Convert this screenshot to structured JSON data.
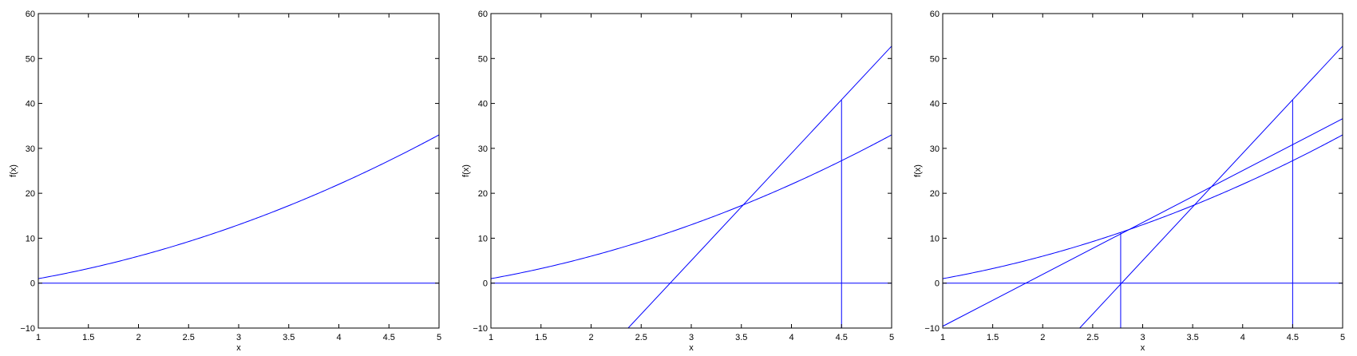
{
  "chart_data": [
    {
      "type": "line",
      "xlabel": "x",
      "ylabel": "f(x)",
      "xlim": [
        1,
        5
      ],
      "ylim": [
        -10,
        60
      ],
      "xticks": [
        1,
        1.5,
        2,
        2.5,
        3,
        3.5,
        4,
        4.5,
        5
      ],
      "xtick_labels": [
        "1",
        "1.5",
        "2",
        "2.5",
        "3",
        "3.5",
        "4",
        "4.5",
        "5"
      ],
      "yticks": [
        -10,
        0,
        10,
        20,
        30,
        40,
        50,
        60
      ],
      "ytick_labels": [
        "−10",
        "0",
        "10",
        "20",
        "30",
        "40",
        "50",
        "60"
      ],
      "grid": false,
      "line_color": "#0000ff",
      "series": [
        {
          "kind": "function",
          "expr": "x^2 + 2x - 2",
          "x_range": [
            1,
            5
          ]
        },
        {
          "kind": "segment",
          "points": [
            [
              1,
              0
            ],
            [
              5,
              0
            ]
          ]
        }
      ]
    },
    {
      "type": "line",
      "xlabel": "x",
      "ylabel": "f(x)",
      "xlim": [
        1,
        5
      ],
      "ylim": [
        -10,
        60
      ],
      "xticks": [
        1,
        1.5,
        2,
        2.5,
        3,
        3.5,
        4,
        4.5,
        5
      ],
      "xtick_labels": [
        "1",
        "1.5",
        "2",
        "2.5",
        "3",
        "3.5",
        "4",
        "4.5",
        "5"
      ],
      "yticks": [
        -10,
        0,
        10,
        20,
        30,
        40,
        50,
        60
      ],
      "ytick_labels": [
        "−10",
        "0",
        "10",
        "20",
        "30",
        "40",
        "50",
        "60"
      ],
      "grid": false,
      "line_color": "#0000ff",
      "series": [
        {
          "kind": "function",
          "expr": "x^2 + 2x - 2",
          "x_range": [
            1,
            5
          ]
        },
        {
          "kind": "segment",
          "points": [
            [
              1,
              0
            ],
            [
              5,
              0
            ]
          ]
        },
        {
          "kind": "segment",
          "points": [
            [
              2.37,
              -10
            ],
            [
              5,
              52.75
            ]
          ]
        },
        {
          "kind": "segment",
          "points": [
            [
              4.5,
              -10
            ],
            [
              4.5,
              40.75
            ]
          ]
        }
      ]
    },
    {
      "type": "line",
      "xlabel": "x",
      "ylabel": "f(x)",
      "xlim": [
        1,
        5
      ],
      "ylim": [
        -10,
        60
      ],
      "xticks": [
        1,
        1.5,
        2,
        2.5,
        3,
        3.5,
        4,
        4.5,
        5
      ],
      "xtick_labels": [
        "1",
        "1.5",
        "2",
        "2.5",
        "3",
        "3.5",
        "4",
        "4.5",
        "5"
      ],
      "yticks": [
        -10,
        0,
        10,
        20,
        30,
        40,
        50,
        60
      ],
      "ytick_labels": [
        "−10",
        "0",
        "10",
        "20",
        "30",
        "40",
        "50",
        "60"
      ],
      "grid": false,
      "line_color": "#0000ff",
      "series": [
        {
          "kind": "function",
          "expr": "x^2 + 2x - 2",
          "x_range": [
            1,
            5
          ]
        },
        {
          "kind": "segment",
          "points": [
            [
              1,
              0
            ],
            [
              5,
              0
            ]
          ]
        },
        {
          "kind": "segment",
          "points": [
            [
              2.37,
              -10
            ],
            [
              5,
              52.75
            ]
          ]
        },
        {
          "kind": "segment",
          "points": [
            [
              4.5,
              -10
            ],
            [
              4.5,
              40.75
            ]
          ]
        },
        {
          "kind": "segment",
          "points": [
            [
              1,
              -9.6
            ],
            [
              5,
              36.6
            ]
          ]
        },
        {
          "kind": "segment",
          "points": [
            [
              2.78,
              -10
            ],
            [
              2.78,
              11.3
            ]
          ]
        }
      ]
    }
  ]
}
